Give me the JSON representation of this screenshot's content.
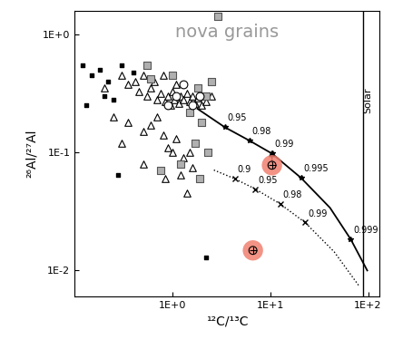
{
  "chart_data": {
    "type": "scatter",
    "title": "nova grains",
    "x_label": "¹²C/¹³C",
    "y_label": "²⁶Al/²⁷Al",
    "log": true,
    "grid": false,
    "xlim": [
      0.1,
      130
    ],
    "ylim": [
      0.006,
      1.6
    ],
    "xticks": [
      {
        "value": 1,
        "label": "1E+0"
      },
      {
        "value": 10,
        "label": "1E+1"
      },
      {
        "value": 100,
        "label": "1E+2"
      }
    ],
    "yticks": [
      {
        "value": 0.01,
        "label": "1E-2"
      },
      {
        "value": 0.1,
        "label": "1E-1"
      },
      {
        "value": 1,
        "label": "1E+0"
      }
    ],
    "solar_line": {
      "x": 89,
      "label": "Solar"
    },
    "series": [
      {
        "type": "scatter",
        "marker": "triangle",
        "color": "#000000",
        "x": [
          0.3,
          0.35,
          0.42,
          0.45,
          0.5,
          0.55,
          0.6,
          0.65,
          0.7,
          0.75,
          0.8,
          0.85,
          0.9,
          0.95,
          1.0,
          1.05,
          1.1,
          1.15,
          1.2,
          1.3,
          1.4,
          1.5,
          1.6,
          1.7,
          1.8,
          2.0,
          2.2,
          2.5,
          0.25,
          0.3,
          0.35,
          0.5,
          0.6,
          0.7,
          0.8,
          0.9,
          1.0,
          1.1,
          1.3,
          1.5,
          1.6,
          1.2,
          0.85,
          1.4,
          0.5,
          0.2
        ],
        "y": [
          0.45,
          0.38,
          0.4,
          0.33,
          0.45,
          0.3,
          0.35,
          0.4,
          0.28,
          0.32,
          0.45,
          0.27,
          0.3,
          0.25,
          0.33,
          0.28,
          0.38,
          0.26,
          0.3,
          0.28,
          0.32,
          0.27,
          0.3,
          0.26,
          0.29,
          0.25,
          0.27,
          0.3,
          0.2,
          0.12,
          0.18,
          0.15,
          0.17,
          0.2,
          0.14,
          0.11,
          0.1,
          0.13,
          0.09,
          0.1,
          0.075,
          0.065,
          0.06,
          0.045,
          0.08,
          0.35
        ]
      },
      {
        "type": "scatter",
        "marker": "square",
        "color": "#b0b0b0",
        "x": [
          0.55,
          0.6,
          1.0,
          1.8,
          2.2,
          1.5,
          2.0,
          1.2,
          0.75,
          2.9,
          2.5,
          1.7,
          2.3,
          1.9
        ],
        "y": [
          0.55,
          0.42,
          0.45,
          0.35,
          0.3,
          0.22,
          0.18,
          0.08,
          0.07,
          1.43,
          0.4,
          0.12,
          0.1,
          0.06
        ]
      },
      {
        "type": "scatter",
        "marker": "small_square",
        "color": "#000000",
        "x": [
          0.12,
          0.15,
          0.18,
          0.2,
          0.22,
          0.25,
          0.3,
          0.13,
          0.4,
          2.2,
          0.28
        ],
        "y": [
          0.55,
          0.45,
          0.5,
          0.3,
          0.4,
          0.28,
          0.55,
          0.25,
          0.48,
          0.013,
          0.065
        ]
      },
      {
        "type": "scatter",
        "marker": "circle",
        "color": "#000000",
        "x": [
          1.1,
          1.3,
          1.6,
          1.9,
          0.9
        ],
        "y": [
          0.3,
          0.38,
          0.25,
          0.3,
          0.25
        ]
      },
      {
        "type": "line",
        "line_style": "solid",
        "color": "#000000",
        "x": [
          1.8,
          3.42,
          6.14,
          10.4,
          20.6,
          40.8,
          66.4,
          98
        ],
        "y": [
          0.235,
          0.164,
          0.126,
          0.098,
          0.061,
          0.034,
          0.0184,
          0.01
        ],
        "point_labels": {
          "x": [
            3.42,
            6.14,
            10.4,
            20.6,
            66.4
          ],
          "y": [
            0.164,
            0.126,
            0.098,
            0.061,
            0.0184
          ],
          "labels": [
            "0.95",
            "0.98",
            "0.99",
            "0.995",
            "0.999"
          ]
        }
      },
      {
        "type": "line",
        "line_style": "dotted",
        "color": "#000000",
        "x": [
          2.65,
          4.32,
          7.04,
          12.6,
          22.7,
          45,
          80.7
        ],
        "y": [
          0.071,
          0.06,
          0.049,
          0.0367,
          0.0255,
          0.0144,
          0.0074
        ],
        "point_labels": {
          "x": [
            4.32,
            7.04,
            12.6,
            22.7
          ],
          "y": [
            0.06,
            0.049,
            0.0367,
            0.0255
          ],
          "labels": [
            "0.9",
            "0.95",
            "0.98",
            "0.99"
          ]
        }
      },
      {
        "type": "scatter",
        "marker": "crossed_circle",
        "color": "#f08070",
        "x": [
          10.4,
          6.64
        ],
        "y": [
          0.078,
          0.0148
        ]
      }
    ],
    "arrows": [
      {
        "x": 10.4,
        "y_from": 0.078,
        "y_to": 0.11
      }
    ]
  }
}
